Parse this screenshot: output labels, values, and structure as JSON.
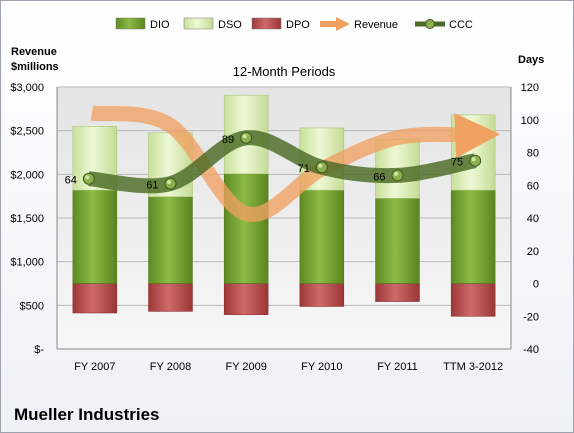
{
  "company": "Mueller Industries",
  "chart_data": {
    "type": "bar",
    "title": "12-Month Periods",
    "left_axis_label": [
      "Revenue",
      "$millions"
    ],
    "right_axis_label": "Days",
    "categories": [
      "FY 2007",
      "FY 2008",
      "FY 2009",
      "FY 2010",
      "FY 2011",
      "TTM 3-2012"
    ],
    "left_ticks": [
      "$-",
      "$500",
      "$1,000",
      "$1,500",
      "$2,000",
      "$2,500",
      "$3,000"
    ],
    "left_range": [
      0,
      3000
    ],
    "right_ticks": [
      "-40",
      "-20",
      "0",
      "20",
      "40",
      "60",
      "80",
      "100",
      "120"
    ],
    "right_range": [
      -40,
      120
    ],
    "grid": true,
    "legend_position": "top",
    "legend": [
      {
        "label": "DIO",
        "kind": "bar",
        "color": "#6f9a2c"
      },
      {
        "label": "DSO",
        "kind": "bar",
        "color": "#d9ecb0"
      },
      {
        "label": "DPO",
        "kind": "bar",
        "color": "#b54a4a"
      },
      {
        "label": "Revenue",
        "kind": "arrow",
        "color": "#f0a060"
      },
      {
        "label": "CCC",
        "kind": "line",
        "color": "#4a6a25"
      }
    ],
    "series": [
      {
        "name": "DIO",
        "axis": "right",
        "values": [
          57,
          53,
          67,
          57,
          52,
          57
        ]
      },
      {
        "name": "DSO",
        "axis": "right",
        "values": [
          39,
          39,
          48,
          38,
          36,
          46
        ]
      },
      {
        "name": "DPO",
        "axis": "right",
        "values": [
          -18,
          -17,
          -19,
          -14,
          -11,
          -20
        ]
      },
      {
        "name": "Revenue",
        "axis": "left",
        "values": [
          2700,
          2560,
          1550,
          2060,
          2420,
          2450
        ]
      },
      {
        "name": "CCC",
        "axis": "right",
        "values": [
          64,
          61,
          89,
          71,
          66,
          75
        ]
      }
    ],
    "ccc_labels": [
      "64",
      "61",
      "89",
      "71",
      "66",
      "75"
    ]
  }
}
